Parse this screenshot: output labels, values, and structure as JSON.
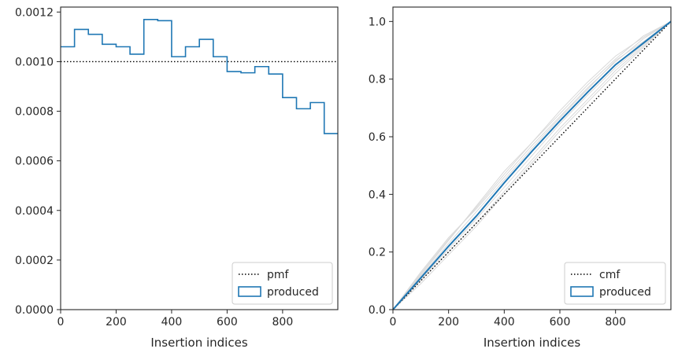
{
  "chart_data": [
    {
      "type": "step",
      "xlabel": "Insertion indices",
      "ylabel": "",
      "xlim": [
        0,
        999
      ],
      "ylim": [
        0,
        0.00122
      ],
      "xticks": [
        0,
        200,
        400,
        600,
        800
      ],
      "xtick_labels": [
        "0",
        "200",
        "400",
        "600",
        "800"
      ],
      "yticks": [
        0,
        0.0002,
        0.0004,
        0.0006,
        0.0008,
        0.001,
        0.0012
      ],
      "ytick_labels": [
        "0.0000",
        "0.0002",
        "0.0004",
        "0.0006",
        "0.0008",
        "0.0010",
        "0.0012"
      ],
      "legend_position": "lower right",
      "grid": false,
      "series": [
        {
          "name": "pmf",
          "style": "dotted",
          "color": "#000000",
          "x": [
            0,
            999
          ],
          "values": [
            0.001,
            0.001
          ]
        },
        {
          "name": "produced",
          "style": "step",
          "color": "#1f77b4",
          "bin_edges": [
            0,
            50,
            100,
            150,
            200,
            250,
            300,
            350,
            400,
            450,
            500,
            550,
            600,
            650,
            700,
            750,
            800,
            850,
            900,
            950,
            999
          ],
          "values": [
            0.00106,
            0.00113,
            0.00111,
            0.00107,
            0.00106,
            0.00103,
            0.00117,
            0.001165,
            0.00102,
            0.00106,
            0.00109,
            0.00102,
            0.00096,
            0.000955,
            0.00098,
            0.00095,
            0.000855,
            0.00081,
            0.000835,
            0.00071
          ]
        }
      ]
    },
    {
      "type": "line",
      "xlabel": "Insertion indices",
      "ylabel": "",
      "xlim": [
        0,
        999
      ],
      "ylim": [
        0,
        1.05
      ],
      "xticks": [
        0,
        200,
        400,
        600,
        800
      ],
      "xtick_labels": [
        "0",
        "200",
        "400",
        "600",
        "800"
      ],
      "yticks": [
        0,
        0.2,
        0.4,
        0.6,
        0.8,
        1.0
      ],
      "ytick_labels": [
        "0.0",
        "0.2",
        "0.4",
        "0.6",
        "0.8",
        "1.0"
      ],
      "legend_position": "lower right",
      "grid": false,
      "series": [
        {
          "name": "cmf",
          "style": "dotted",
          "color": "#000000",
          "x": [
            0,
            999
          ],
          "values": [
            0,
            1
          ]
        },
        {
          "name": "produced",
          "style": "solid",
          "color": "#1f77b4",
          "x": [
            0,
            100,
            200,
            300,
            400,
            500,
            600,
            700,
            800,
            900,
            999
          ],
          "values": [
            0,
            0.11,
            0.22,
            0.325,
            0.44,
            0.55,
            0.655,
            0.755,
            0.85,
            0.925,
            1.0
          ]
        }
      ],
      "background_lines": {
        "color": "#d9d9d9",
        "x": [
          0,
          100,
          200,
          300,
          400,
          500,
          600,
          700,
          800,
          900,
          999
        ],
        "lines": [
          [
            0,
            0.12,
            0.24,
            0.36,
            0.48,
            0.58,
            0.69,
            0.79,
            0.88,
            0.945,
            1.0
          ],
          [
            0,
            0.1,
            0.2,
            0.3,
            0.41,
            0.52,
            0.63,
            0.73,
            0.83,
            0.915,
            1.0
          ],
          [
            0,
            0.13,
            0.25,
            0.35,
            0.46,
            0.57,
            0.67,
            0.77,
            0.86,
            0.94,
            1.0
          ],
          [
            0,
            0.09,
            0.19,
            0.29,
            0.4,
            0.51,
            0.62,
            0.72,
            0.82,
            0.91,
            1.0
          ],
          [
            0,
            0.115,
            0.23,
            0.34,
            0.45,
            0.56,
            0.665,
            0.765,
            0.865,
            0.93,
            1.0
          ],
          [
            0,
            0.105,
            0.21,
            0.315,
            0.425,
            0.535,
            0.645,
            0.745,
            0.84,
            0.92,
            1.0
          ],
          [
            0,
            0.125,
            0.245,
            0.355,
            0.47,
            0.58,
            0.68,
            0.78,
            0.87,
            0.95,
            1.0
          ]
        ]
      }
    }
  ]
}
